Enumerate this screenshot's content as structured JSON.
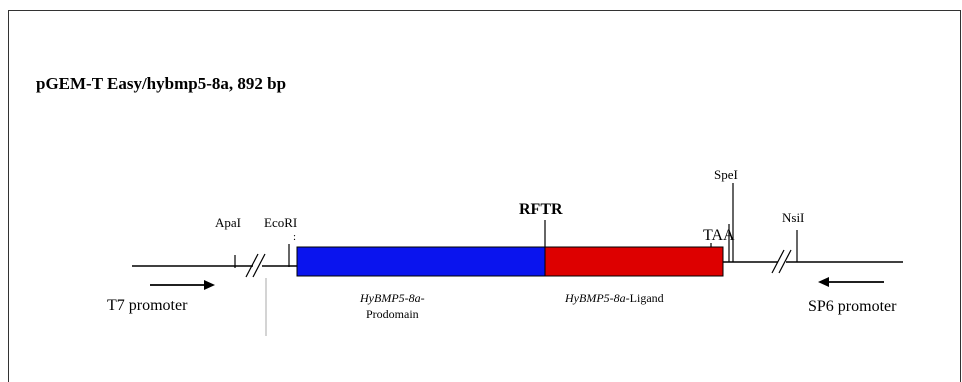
{
  "title": "pGEM-T Easy/hybmp5-8a, 892 bp",
  "sites": {
    "apal": "ApaI",
    "ecori": "EcoRI",
    "rftr": "RFTR",
    "taa": "TAA",
    "spel": "SpeI",
    "nsil": "NsiI"
  },
  "promoters": {
    "t7": "T7 promoter",
    "sp6": "SP6 promoter"
  },
  "domains": {
    "prodomain_gene": "HyBMP5-8a-",
    "prodomain_label": "Prodomain",
    "ligand_gene": "HyBMP5-8a",
    "ligand_suffix": "-Ligand"
  },
  "colors": {
    "prodomain": "#0a14ee",
    "ligand": "#dd0000",
    "line": "#000000"
  }
}
